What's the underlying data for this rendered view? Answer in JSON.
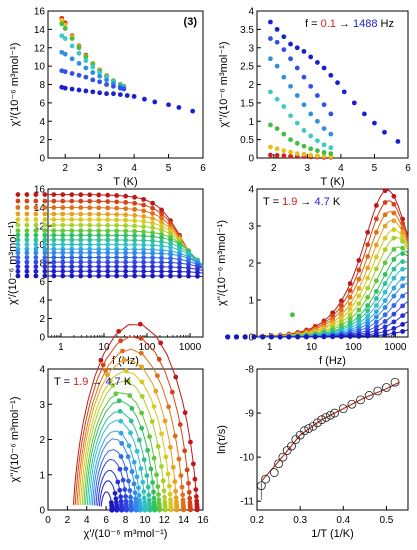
{
  "chart_data": [
    {
      "type": "scatter",
      "panel_label": "(3)",
      "xlabel": "T (K)",
      "ylabel": "χ'/(10⁻⁶ m³mol⁻¹)",
      "xlim": [
        1.5,
        6
      ],
      "ylim": [
        0,
        16
      ],
      "xticks": [
        2,
        3,
        4,
        5,
        6
      ],
      "yticks": [
        0,
        2,
        4,
        6,
        8,
        10,
        12,
        14,
        16
      ],
      "series_note": "frequency series 0.1 → 1488 Hz, colored red→blue",
      "series": [
        {
          "x": [
            1.9,
            2.0,
            2.2,
            2.4,
            2.6,
            2.8,
            3.0,
            3.2,
            3.4,
            3.6,
            3.7
          ],
          "y": [
            15.2,
            14.7,
            13.3,
            12.2,
            11.2,
            10.3,
            9.6,
            9.0,
            8.4,
            8.0,
            7.8
          ],
          "color": "#d62020"
        },
        {
          "x": [
            1.9,
            2.0,
            2.2,
            2.4,
            2.6,
            2.8,
            3.0,
            3.2,
            3.4,
            3.6,
            3.7
          ],
          "y": [
            15.0,
            14.5,
            13.2,
            12.1,
            11.1,
            10.3,
            9.6,
            9.0,
            8.4,
            8.0,
            7.8
          ],
          "color": "#e8c020"
        },
        {
          "x": [
            1.9,
            2.0,
            2.2,
            2.4,
            2.6,
            2.8,
            3.0,
            3.2,
            3.4,
            3.6,
            3.7
          ],
          "y": [
            14.6,
            14.1,
            13.0,
            12.0,
            11.0,
            10.2,
            9.5,
            8.9,
            8.4,
            8.0,
            7.8
          ],
          "color": "#40c040"
        },
        {
          "x": [
            1.9,
            2.0,
            2.2,
            2.4,
            2.6,
            2.8,
            3.0,
            3.2,
            3.4,
            3.6,
            3.7
          ],
          "y": [
            13.3,
            13.0,
            12.2,
            11.4,
            10.6,
            9.9,
            9.3,
            8.8,
            8.3,
            7.9,
            7.7
          ],
          "color": "#40c8c8"
        },
        {
          "x": [
            1.9,
            2.0,
            2.2,
            2.4,
            2.6,
            2.8,
            3.0,
            3.2,
            3.4,
            3.6,
            3.7
          ],
          "y": [
            11.5,
            11.3,
            10.8,
            10.3,
            9.8,
            9.3,
            8.9,
            8.5,
            8.1,
            7.8,
            7.6
          ],
          "color": "#3090e0"
        },
        {
          "x": [
            1.9,
            2.0,
            2.2,
            2.4,
            2.6,
            2.8,
            3.0,
            3.2,
            3.4,
            3.6,
            3.7
          ],
          "y": [
            9.5,
            9.4,
            9.2,
            9.0,
            8.8,
            8.5,
            8.3,
            8.0,
            7.8,
            7.6,
            7.5
          ],
          "color": "#3050e8"
        },
        {
          "x": [
            1.9,
            2.0,
            2.2,
            2.4,
            2.6,
            2.8,
            3.0,
            3.2,
            3.4,
            3.6,
            3.8,
            4.0,
            4.3,
            4.6,
            5.0,
            5.3,
            5.7
          ],
          "y": [
            7.7,
            7.6,
            7.5,
            7.4,
            7.3,
            7.2,
            7.1,
            7.0,
            7.0,
            6.9,
            6.8,
            6.7,
            6.4,
            6.1,
            5.8,
            5.5,
            5.1
          ],
          "color": "#1a20d0"
        }
      ]
    },
    {
      "type": "scatter",
      "annotation": {
        "prefix": "f = ",
        "from": "0.1",
        "arrow": "→",
        "to": "1488",
        "unit": "Hz"
      },
      "xlabel": "T (K)",
      "ylabel": "χ''/(10⁻⁶ m³mol⁻¹)",
      "xlim": [
        1.5,
        6
      ],
      "ylim": [
        0,
        4
      ],
      "xticks": [
        2,
        3,
        4,
        5,
        6
      ],
      "yticks": [
        0,
        0.5,
        1,
        1.5,
        2,
        2.5,
        3,
        3.5,
        4
      ],
      "series": [
        {
          "x": [
            1.9,
            2.1,
            2.3,
            2.5,
            2.7,
            2.9,
            3.1,
            3.3,
            3.5,
            3.7
          ],
          "y": [
            0.08,
            0.07,
            0.06,
            0.05,
            0.04,
            0.04,
            0.03,
            0.03,
            0.02,
            0.02
          ],
          "color": "#d62020"
        },
        {
          "x": [
            1.9,
            2.1,
            2.3,
            2.5,
            2.7,
            2.9,
            3.1,
            3.3,
            3.5,
            3.7
          ],
          "y": [
            0.3,
            0.25,
            0.2,
            0.16,
            0.12,
            0.1,
            0.08,
            0.06,
            0.05,
            0.04
          ],
          "color": "#e8c020"
        },
        {
          "x": [
            1.9,
            2.1,
            2.3,
            2.5,
            2.7,
            2.9,
            3.1,
            3.3,
            3.5,
            3.7
          ],
          "y": [
            0.9,
            0.8,
            0.65,
            0.5,
            0.4,
            0.32,
            0.25,
            0.2,
            0.15,
            0.12
          ],
          "color": "#40c040"
        },
        {
          "x": [
            1.9,
            2.1,
            2.3,
            2.5,
            2.7,
            2.9,
            3.1,
            3.3,
            3.5,
            3.7
          ],
          "y": [
            1.8,
            1.6,
            1.4,
            1.15,
            0.95,
            0.75,
            0.6,
            0.47,
            0.36,
            0.28
          ],
          "color": "#40c8c8"
        },
        {
          "x": [
            1.9,
            2.1,
            2.3,
            2.5,
            2.7,
            2.9,
            3.1,
            3.3,
            3.5,
            3.7
          ],
          "y": [
            2.7,
            2.5,
            2.2,
            1.95,
            1.7,
            1.45,
            1.2,
            1.0,
            0.8,
            0.65
          ],
          "color": "#3090e0"
        },
        {
          "x": [
            1.9,
            2.1,
            2.3,
            2.5,
            2.7,
            2.9,
            3.1,
            3.3,
            3.5,
            3.7
          ],
          "y": [
            3.25,
            3.15,
            2.95,
            2.7,
            2.45,
            2.2,
            1.95,
            1.7,
            1.45,
            1.2
          ],
          "color": "#3050e8"
        },
        {
          "x": [
            1.9,
            2.1,
            2.3,
            2.5,
            2.7,
            2.9,
            3.1,
            3.3,
            3.5,
            3.7,
            3.9,
            4.1,
            4.4,
            4.7,
            5.0,
            5.3,
            5.7
          ],
          "y": [
            3.7,
            3.5,
            3.3,
            3.1,
            3.0,
            2.9,
            2.75,
            2.6,
            2.45,
            2.25,
            2.05,
            1.8,
            1.5,
            1.2,
            0.95,
            0.7,
            0.45
          ],
          "color": "#1a20d0"
        }
      ]
    },
    {
      "type": "line",
      "xlabel": "f (Hz)",
      "ylabel": "χ'/(10⁻⁶ m³mol⁻¹)",
      "xscale": "log",
      "xlim": [
        0.5,
        2000
      ],
      "ylim": [
        0,
        16
      ],
      "xticks": [
        1,
        10,
        100,
        1000
      ],
      "yticks": [
        0,
        2,
        4,
        6,
        8,
        10,
        12,
        14,
        16
      ],
      "model": "Cole-Cole fits, one curve per temperature 1.9 → 4.7 K",
      "curves": [
        {
          "chiT": 15.4,
          "chiS": 5.8,
          "tau": 0.00025,
          "alpha": 0.12,
          "color": "#c01818"
        },
        {
          "chiT": 14.7,
          "chiS": 5.8,
          "tau": 0.00023,
          "alpha": 0.12,
          "color": "#d84018"
        },
        {
          "chiT": 14.0,
          "chiS": 5.8,
          "tau": 0.00021,
          "alpha": 0.12,
          "color": "#e07018"
        },
        {
          "chiT": 13.3,
          "chiS": 5.8,
          "tau": 0.00019,
          "alpha": 0.11,
          "color": "#e8a020"
        },
        {
          "chiT": 12.7,
          "chiS": 5.8,
          "tau": 0.00017,
          "alpha": 0.11,
          "color": "#d8c820"
        },
        {
          "chiT": 12.1,
          "chiS": 5.8,
          "tau": 0.00015,
          "alpha": 0.1,
          "color": "#a8d028"
        },
        {
          "chiT": 11.5,
          "chiS": 5.8,
          "tau": 0.00013,
          "alpha": 0.1,
          "color": "#60c838"
        },
        {
          "chiT": 11.0,
          "chiS": 5.8,
          "tau": 0.00011,
          "alpha": 0.09,
          "color": "#30c060"
        },
        {
          "chiT": 10.5,
          "chiS": 5.8,
          "tau": 0.0001,
          "alpha": 0.09,
          "color": "#30c098"
        },
        {
          "chiT": 10.0,
          "chiS": 5.8,
          "tau": 9e-05,
          "alpha": 0.08,
          "color": "#30c0c8"
        },
        {
          "chiT": 9.5,
          "chiS": 5.8,
          "tau": 8e-05,
          "alpha": 0.08,
          "color": "#30a8e0"
        },
        {
          "chiT": 9.1,
          "chiS": 5.8,
          "tau": 7e-05,
          "alpha": 0.07,
          "color": "#3088e8"
        },
        {
          "chiT": 8.6,
          "chiS": 5.8,
          "tau": 6e-05,
          "alpha": 0.07,
          "color": "#3068e8"
        },
        {
          "chiT": 8.1,
          "chiS": 5.8,
          "tau": 5e-05,
          "alpha": 0.06,
          "color": "#3048e0"
        },
        {
          "chiT": 7.6,
          "chiS": 5.8,
          "tau": 4e-05,
          "alpha": 0.06,
          "color": "#2830d8"
        },
        {
          "chiT": 7.1,
          "chiS": 5.8,
          "tau": 3e-05,
          "alpha": 0.05,
          "color": "#2020c8"
        },
        {
          "chiT": 6.6,
          "chiS": 5.8,
          "tau": 2e-05,
          "alpha": 0.05,
          "color": "#1818b8"
        }
      ]
    },
    {
      "type": "line",
      "annotation": {
        "prefix": "T = ",
        "from": "1.9",
        "arrow": "→",
        "to": "4.7",
        "unit": "K"
      },
      "xlabel": "f (Hz)",
      "ylabel": "χ''/(10⁻⁶ m³mol⁻¹)",
      "xscale": "log",
      "xlim": [
        0.5,
        2000
      ],
      "ylim": [
        0,
        4
      ],
      "xticks": [
        1,
        10,
        100,
        1000
      ],
      "yticks": [
        0,
        1,
        2,
        3,
        4
      ],
      "outlier_point": {
        "x": 3.5,
        "y": 0.6
      }
    },
    {
      "type": "line",
      "annotation": {
        "prefix": "T = ",
        "from": "1.9",
        "arrow": "→",
        "to": "4.7",
        "unit": "K"
      },
      "xlabel": "χ'/(10⁻⁶ m³mol⁻¹)",
      "ylabel": "χ''/(10⁻⁶ m³mol⁻¹)",
      "xlim": [
        0,
        16
      ],
      "ylim": [
        0,
        4
      ],
      "xticks": [
        0,
        2,
        4,
        6,
        8,
        10,
        12,
        14,
        16
      ],
      "yticks": [
        0,
        1,
        2,
        3,
        4
      ],
      "model": "Cole-Cole arcs, one per temperature"
    },
    {
      "type": "scatter",
      "xlabel": "1/T (1/K)",
      "ylabel": "ln(τ/s)",
      "xlim": [
        0.2,
        0.55
      ],
      "ylim": [
        -11.2,
        -8
      ],
      "xticks": [
        0.2,
        0.3,
        0.4,
        0.5
      ],
      "yticks": [
        -11,
        -10,
        -9,
        -8
      ],
      "x": [
        0.21,
        0.22,
        0.24,
        0.25,
        0.26,
        0.27,
        0.28,
        0.29,
        0.3,
        0.31,
        0.32,
        0.33,
        0.34,
        0.35,
        0.36,
        0.37,
        0.38,
        0.4,
        0.42,
        0.44,
        0.46,
        0.48,
        0.5,
        0.52
      ],
      "y": [
        -10.65,
        -10.5,
        -10.35,
        -10.15,
        -10.0,
        -9.85,
        -9.75,
        -9.6,
        -9.5,
        -9.4,
        -9.35,
        -9.3,
        -9.22,
        -9.15,
        -9.1,
        -9.05,
        -9.0,
        -8.9,
        -8.8,
        -8.7,
        -8.6,
        -8.5,
        -8.42,
        -8.3
      ],
      "fit_x": [
        0.21,
        0.25,
        0.3,
        0.35,
        0.4,
        0.45,
        0.5,
        0.53
      ],
      "fit_y": [
        -10.55,
        -10.1,
        -9.5,
        -9.15,
        -8.9,
        -8.65,
        -8.45,
        -8.3
      ]
    }
  ]
}
